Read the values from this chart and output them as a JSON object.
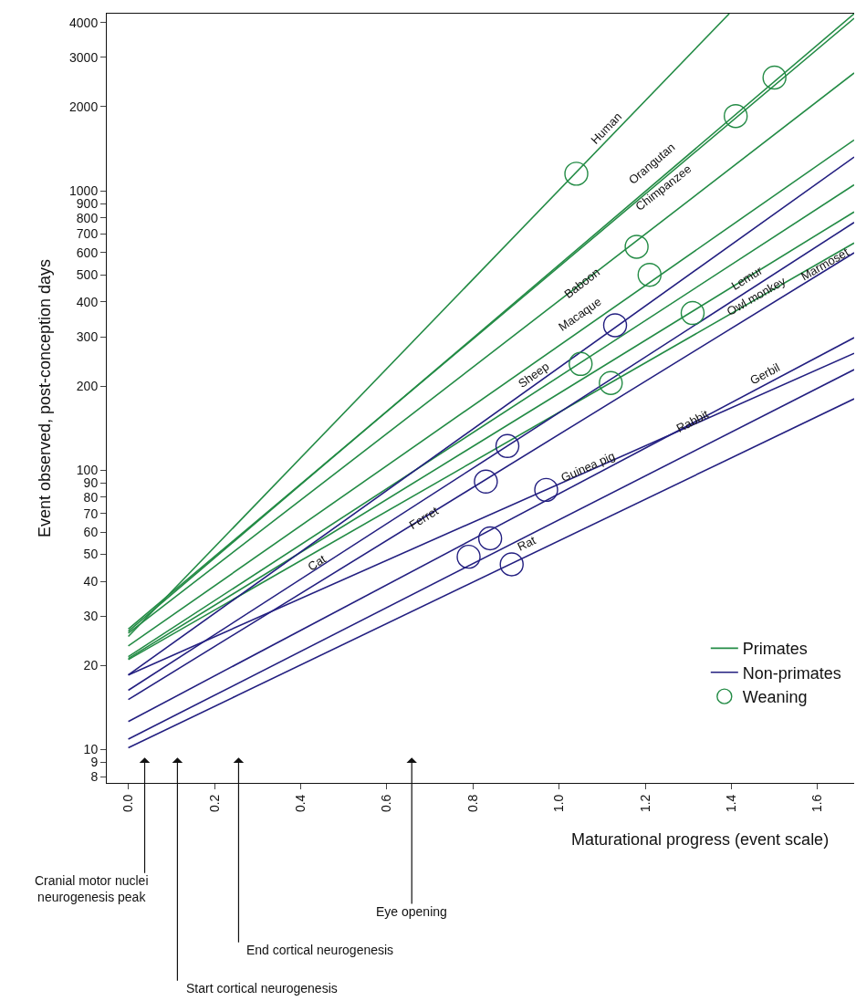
{
  "chart_data": {
    "type": "line",
    "xlabel": "Maturational progress (event scale)",
    "ylabel": "Event observed, post-conception days",
    "log": "y",
    "legend": "bottom right",
    "marker": "none",
    "line_style": "solid",
    "xlim": [
      -0.05,
      1.685
    ],
    "xticks": [
      {
        "value": 0,
        "label": "0.0"
      },
      {
        "value": 0.2,
        "label": "0.2"
      },
      {
        "value": 0.4,
        "label": "0.4"
      },
      {
        "value": 0.6,
        "label": "0.6"
      },
      {
        "value": 0.8,
        "label": "0.8"
      },
      {
        "value": 1,
        "label": "1.0"
      },
      {
        "value": 1.2,
        "label": "1.2"
      },
      {
        "value": 1.4,
        "label": "1.4"
      },
      {
        "value": 1.6,
        "label": "1.6"
      }
    ],
    "ylim": [
      7.6,
      4300
    ],
    "yticks": [
      8,
      9,
      10,
      20,
      30,
      40,
      50,
      60,
      70,
      80,
      90,
      100,
      200,
      300,
      400,
      500,
      600,
      700,
      800,
      900,
      1000,
      2000,
      3000,
      4000
    ],
    "series": [
      {
        "name": "Primates",
        "color": "#238b45",
        "x": [
          0,
          1.395
        ],
        "values": [
          25.4,
          4300
        ]
      },
      {
        "color": "#238b45",
        "x": [
          0,
          1.685
        ],
        "values": [
          26.5,
          4300
        ]
      },
      {
        "color": "#238b45",
        "x": [
          0,
          1.685
        ],
        "values": [
          27,
          4140
        ]
      },
      {
        "color": "#238b45",
        "x": [
          0,
          1.685
        ],
        "values": [
          26.1,
          2640
        ]
      },
      {
        "color": "#238b45",
        "x": [
          0,
          1.685
        ],
        "values": [
          23.5,
          1520
        ]
      },
      {
        "color": "#238b45",
        "x": [
          0,
          1.685
        ],
        "values": [
          21.5,
          1050
        ]
      },
      {
        "color": "#238b45",
        "x": [
          0,
          1.685
        ],
        "values": [
          21.2,
          840
        ]
      },
      {
        "color": "#238b45",
        "x": [
          0,
          1.685
        ],
        "values": [
          21,
          650
        ]
      },
      {
        "name": "Non-primates",
        "color": "#231f80",
        "x": [
          0,
          1.685
        ],
        "values": [
          18.5,
          1320
        ]
      },
      {
        "color": "#231f80",
        "x": [
          0,
          1.685
        ],
        "values": [
          16.3,
          770
        ]
      },
      {
        "color": "#231f80",
        "x": [
          0,
          1.685
        ],
        "values": [
          15.1,
          600
        ]
      },
      {
        "color": "#231f80",
        "x": [
          0,
          1.685
        ],
        "values": [
          18.5,
          262
        ]
      },
      {
        "color": "#231f80",
        "x": [
          0,
          1.685
        ],
        "values": [
          12.6,
          298
        ]
      },
      {
        "color": "#231f80",
        "x": [
          0,
          1.685
        ],
        "values": [
          10.9,
          229
        ]
      },
      {
        "color": "#231f80",
        "x": [
          0,
          1.685
        ],
        "values": [
          10.15,
          180
        ]
      },
      {
        "name": "Weaning",
        "type": "scatter",
        "marker": "circle",
        "x": [
          1.04,
          1.18,
          1.21,
          1.31,
          1.05,
          1.12,
          1.41,
          1.5,
          1.13,
          0.88,
          0.83,
          0.97,
          0.84,
          0.79,
          0.89
        ],
        "values": [
          1150,
          630,
          500,
          365,
          240,
          205,
          1850,
          2540,
          330,
          122,
          91,
          85,
          57,
          49,
          46
        ],
        "colors": [
          "#238b45",
          "#238b45",
          "#238b45",
          "#238b45",
          "#238b45",
          "#238b45",
          "#238b45",
          "#238b45",
          "#231f80",
          "#231f80",
          "#231f80",
          "#231f80",
          "#231f80",
          "#231f80",
          "#231f80"
        ]
      }
    ],
    "annotations": [
      "Human",
      "Orangutan",
      "Chimpanzee",
      "Baboon",
      "Macaque",
      "Sheep",
      "Cat",
      "Ferret",
      "Guinea pig",
      "Rabbit",
      "Rat",
      "Gerbil",
      "Lemur",
      "Owl monkey",
      "Marmoset",
      "Cranial motor nuclei\nneurogenesis peak",
      "Start cortical neurogenesis",
      "End cortical neurogenesis",
      "Eye opening"
    ]
  }
}
